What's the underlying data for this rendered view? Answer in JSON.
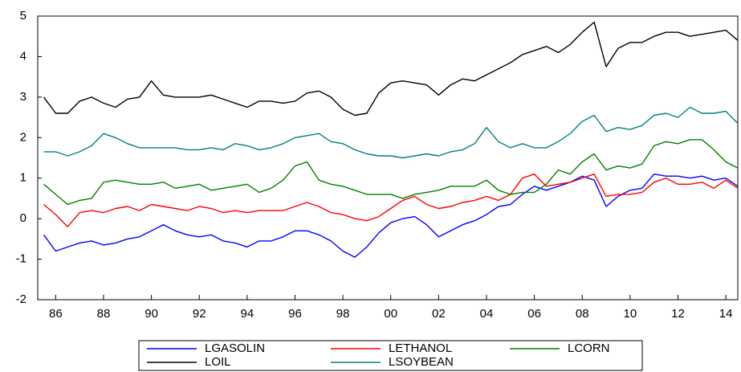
{
  "chart_data": {
    "type": "line",
    "x": [
      1985.5,
      1986,
      1986.5,
      1987,
      1987.5,
      1988,
      1988.5,
      1989,
      1989.5,
      1990,
      1990.5,
      1991,
      1991.5,
      1992,
      1992.5,
      1993,
      1993.5,
      1994,
      1994.5,
      1995,
      1995.5,
      1996,
      1996.5,
      1997,
      1997.5,
      1998,
      1998.5,
      1999,
      1999.5,
      2000,
      2000.5,
      2001,
      2001.5,
      2002,
      2002.5,
      2003,
      2003.5,
      2004,
      2004.5,
      2005,
      2005.5,
      2006,
      2006.5,
      2007,
      2007.5,
      2008,
      2008.5,
      2009,
      2009.5,
      2010,
      2010.5,
      2011,
      2011.5,
      2012,
      2012.5,
      2013,
      2013.5,
      2014,
      2014.5
    ],
    "series": [
      {
        "name": "LGASOLIN",
        "color": "#0000ff",
        "values": [
          -0.4,
          -0.8,
          -0.7,
          -0.6,
          -0.55,
          -0.65,
          -0.6,
          -0.5,
          -0.45,
          -0.3,
          -0.15,
          -0.3,
          -0.4,
          -0.45,
          -0.4,
          -0.55,
          -0.6,
          -0.7,
          -0.55,
          -0.55,
          -0.45,
          -0.3,
          -0.3,
          -0.4,
          -0.55,
          -0.8,
          -0.95,
          -0.7,
          -0.35,
          -0.1,
          0.0,
          0.05,
          -0.15,
          -0.45,
          -0.3,
          -0.15,
          -0.05,
          0.1,
          0.3,
          0.35,
          0.6,
          0.8,
          0.7,
          0.8,
          0.9,
          1.05,
          0.95,
          0.3,
          0.55,
          0.7,
          0.75,
          1.1,
          1.05,
          1.05,
          1.0,
          1.05,
          0.95,
          1.0,
          0.8
        ]
      },
      {
        "name": "LETHANOL",
        "color": "#ff0000",
        "values": [
          0.35,
          0.1,
          -0.2,
          0.15,
          0.2,
          0.15,
          0.25,
          0.3,
          0.2,
          0.35,
          0.3,
          0.25,
          0.2,
          0.3,
          0.25,
          0.15,
          0.2,
          0.15,
          0.2,
          0.2,
          0.2,
          0.3,
          0.4,
          0.3,
          0.15,
          0.1,
          0.0,
          -0.05,
          0.05,
          0.25,
          0.45,
          0.55,
          0.35,
          0.25,
          0.3,
          0.4,
          0.45,
          0.55,
          0.45,
          0.6,
          1.0,
          1.1,
          0.8,
          0.85,
          0.9,
          1.0,
          1.1,
          0.55,
          0.6,
          0.6,
          0.65,
          0.9,
          1.0,
          0.85,
          0.85,
          0.9,
          0.75,
          0.95,
          0.75
        ]
      },
      {
        "name": "LCORN",
        "color": "#008000",
        "values": [
          0.85,
          0.6,
          0.35,
          0.45,
          0.5,
          0.9,
          0.95,
          0.9,
          0.85,
          0.85,
          0.9,
          0.75,
          0.8,
          0.85,
          0.7,
          0.75,
          0.8,
          0.85,
          0.65,
          0.75,
          0.95,
          1.3,
          1.4,
          0.95,
          0.85,
          0.8,
          0.7,
          0.6,
          0.6,
          0.6,
          0.5,
          0.6,
          0.65,
          0.7,
          0.8,
          0.8,
          0.8,
          0.95,
          0.7,
          0.6,
          0.65,
          0.65,
          0.85,
          1.2,
          1.1,
          1.4,
          1.6,
          1.2,
          1.3,
          1.25,
          1.35,
          1.8,
          1.9,
          1.85,
          1.95,
          1.95,
          1.7,
          1.4,
          1.25
        ]
      },
      {
        "name": "LOIL",
        "color": "#000000",
        "values": [
          3.0,
          2.6,
          2.6,
          2.9,
          3.0,
          2.85,
          2.75,
          2.95,
          3.0,
          3.4,
          3.05,
          3.0,
          3.0,
          3.0,
          3.05,
          2.95,
          2.85,
          2.75,
          2.9,
          2.9,
          2.85,
          2.9,
          3.1,
          3.15,
          3.0,
          2.7,
          2.55,
          2.6,
          3.1,
          3.35,
          3.4,
          3.35,
          3.3,
          3.05,
          3.3,
          3.45,
          3.4,
          3.55,
          3.7,
          3.85,
          4.05,
          4.15,
          4.25,
          4.1,
          4.3,
          4.6,
          4.85,
          3.75,
          4.2,
          4.35,
          4.35,
          4.5,
          4.6,
          4.6,
          4.5,
          4.55,
          4.6,
          4.65,
          4.4
        ]
      },
      {
        "name": "LSOYBEAN",
        "color": "#008080",
        "values": [
          1.65,
          1.65,
          1.55,
          1.65,
          1.8,
          2.1,
          2.0,
          1.85,
          1.75,
          1.75,
          1.75,
          1.75,
          1.7,
          1.7,
          1.75,
          1.7,
          1.85,
          1.8,
          1.7,
          1.75,
          1.85,
          2.0,
          2.05,
          2.1,
          1.9,
          1.85,
          1.7,
          1.6,
          1.55,
          1.55,
          1.5,
          1.55,
          1.6,
          1.55,
          1.65,
          1.7,
          1.85,
          2.25,
          1.9,
          1.75,
          1.85,
          1.75,
          1.75,
          1.9,
          2.1,
          2.4,
          2.55,
          2.15,
          2.25,
          2.2,
          2.3,
          2.55,
          2.6,
          2.5,
          2.75,
          2.6,
          2.6,
          2.65,
          2.35
        ]
      }
    ],
    "xlim": [
      1985.25,
      2014.5
    ],
    "xticks": [
      {
        "value": 1986,
        "label": "86"
      },
      {
        "value": 1988,
        "label": "88"
      },
      {
        "value": 1990,
        "label": "90"
      },
      {
        "value": 1992,
        "label": "92"
      },
      {
        "value": 1994,
        "label": "94"
      },
      {
        "value": 1996,
        "label": "96"
      },
      {
        "value": 1998,
        "label": "98"
      },
      {
        "value": 2000,
        "label": "00"
      },
      {
        "value": 2002,
        "label": "02"
      },
      {
        "value": 2004,
        "label": "04"
      },
      {
        "value": 2006,
        "label": "06"
      },
      {
        "value": 2008,
        "label": "08"
      },
      {
        "value": 2010,
        "label": "10"
      },
      {
        "value": 2012,
        "label": "12"
      },
      {
        "value": 2014,
        "label": "14"
      }
    ],
    "ylim": [
      -2,
      5
    ],
    "yticks": [
      -2,
      -1,
      0,
      1,
      2,
      3,
      4,
      5
    ],
    "grid": false,
    "legend": "bottom"
  }
}
